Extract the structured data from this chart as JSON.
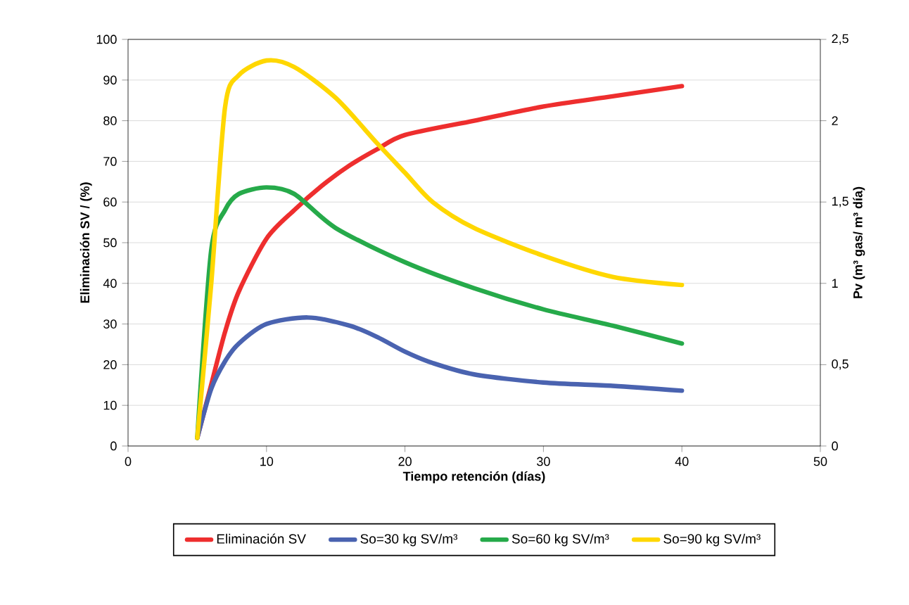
{
  "chart_data": {
    "type": "line",
    "xlabel": "Tiempo retención (días)",
    "ylabel": "Eliminación SV / (%)",
    "y2label": "Pv (m³ gas/ m³ día)",
    "xlim": [
      0,
      50
    ],
    "xticks": [
      0,
      10,
      20,
      30,
      40,
      50
    ],
    "ylim": [
      0,
      100
    ],
    "yticks": [
      0,
      10,
      20,
      30,
      40,
      50,
      60,
      70,
      80,
      90,
      100
    ],
    "y2lim": [
      0,
      2.5
    ],
    "y2ticks": [
      0,
      {
        "value": 0.5,
        "label": "0,5"
      },
      1,
      {
        "value": 1.5,
        "label": "1,5"
      },
      2,
      {
        "value": 2.5,
        "label": "2,5"
      }
    ],
    "grid": "y",
    "legend": "bottom",
    "line_style": "solid",
    "series": [
      {
        "name": "Eliminación SV",
        "color": "#ee2e2e",
        "x": [
          5,
          6,
          7,
          8,
          10,
          12,
          14,
          16,
          18,
          20,
          25,
          30,
          35,
          40
        ],
        "values": [
          2,
          15,
          28,
          38,
          51,
          58,
          64,
          69,
          73,
          76.5,
          80,
          83.5,
          86,
          88.5
        ]
      },
      {
        "name": "So=30 kg SV/m³",
        "color": "#4a63b0",
        "axis": "y2",
        "x": [
          5,
          6,
          7,
          8,
          10,
          13,
          16,
          18,
          20,
          22,
          25,
          30,
          35,
          40
        ],
        "values": [
          0.05,
          0.35,
          0.52,
          0.63,
          0.75,
          0.79,
          0.74,
          0.67,
          0.58,
          0.51,
          0.44,
          0.39,
          0.37,
          0.34
        ]
      },
      {
        "name": "So=60 kg SV/m³",
        "color": "#26aa4a",
        "axis": "y2",
        "x": [
          5,
          6,
          7,
          8,
          10,
          12,
          15,
          20,
          25,
          30,
          35,
          40
        ],
        "values": [
          0.05,
          1.2,
          1.45,
          1.55,
          1.59,
          1.55,
          1.34,
          1.13,
          0.97,
          0.84,
          0.74,
          0.63
        ]
      },
      {
        "name": "So=90 kg SV/m³",
        "color": "#ffd700",
        "axis": "y2",
        "x": [
          5,
          6,
          7,
          8,
          10,
          12,
          15,
          18,
          20,
          22,
          25,
          30,
          35,
          40
        ],
        "values": [
          0.05,
          0.99,
          2.08,
          2.28,
          2.37,
          2.33,
          2.14,
          1.86,
          1.68,
          1.5,
          1.34,
          1.17,
          1.04,
          0.99
        ]
      }
    ]
  }
}
